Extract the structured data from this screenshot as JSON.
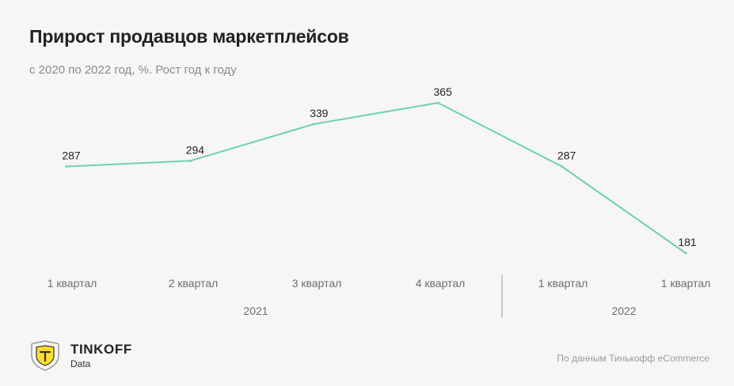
{
  "title": "Прирост продавцов маркетплейсов",
  "subtitle": "с 2020 по 2022 год, %. Рост год к году",
  "chart_data": {
    "type": "line",
    "title": "Прирост продавцов маркетплейсов",
    "subtitle": "с 2020 по 2022 год, %. Рост год к году",
    "categories": [
      "1 квартал",
      "2 квартал",
      "3  квартал",
      "4 квартал",
      "1 квартал",
      "1 квартал"
    ],
    "values": [
      287,
      294,
      339,
      365,
      287,
      181
    ],
    "years": [
      {
        "label": "2021",
        "from": 0,
        "to": 3
      },
      {
        "label": "2022",
        "from": 4,
        "to": 5
      }
    ],
    "line_color": "#6fd0ae",
    "ylim": [
      150,
      400
    ],
    "xlabel": "",
    "ylabel": "",
    "grid": false
  },
  "footer": {
    "brand": "TINKOFF",
    "brand_sub": "Data",
    "source": "По данным Тинькофф eCommerce"
  },
  "logo": {
    "icon": "tinkoff-crest-icon",
    "color": "#ffdd2d"
  }
}
